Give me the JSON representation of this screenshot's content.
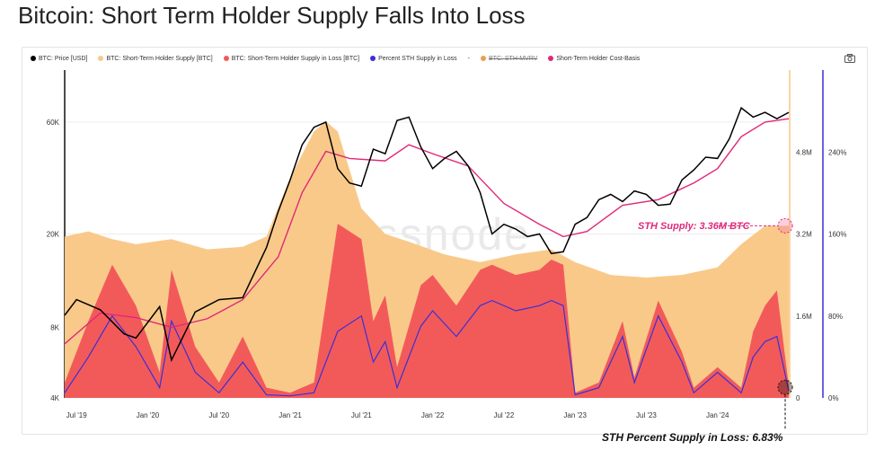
{
  "chart_data": {
    "type": "area",
    "title": "Bitcoin: Short Term Holder Supply Falls Into Loss",
    "watermark": "glassnode",
    "x_tick_labels": [
      "Jul '19",
      "Jan '20",
      "Jul '20",
      "Jan '21",
      "Jul '21",
      "Jan '22",
      "Jul '22",
      "Jan '23",
      "Jul '23",
      "Jan '24"
    ],
    "x_range": [
      "2019-06",
      "2024-07"
    ],
    "y_left": {
      "scale": "log",
      "range": [
        4000,
        100000
      ],
      "tick_labels": [
        "4K",
        "8K",
        "20K",
        "60K"
      ]
    },
    "y_right_supply": {
      "range": [
        0,
        6400000
      ],
      "tick_labels": [
        "0",
        "1.6M",
        "3.2M",
        "4.8M"
      ]
    },
    "y_right_percent": {
      "range": [
        0,
        320
      ],
      "tick_labels": [
        "0%",
        "80%",
        "160%",
        "240%"
      ]
    },
    "legend": {
      "placement": "top-left",
      "entries": [
        {
          "label": "BTC: Price [USD]",
          "color": "#000000"
        },
        {
          "label": "BTC: Short-Term Holder Supply [BTC]",
          "color": "#f9c98a"
        },
        {
          "label": "BTC: Short-Term Holder Supply in Loss [BTC]",
          "color": "#f25a5a"
        },
        {
          "label": "Percent STH Supply in Loss",
          "color": "#3b2fd6"
        },
        {
          "label": "-",
          "color": ""
        },
        {
          "label": "BTC: STH-MVRV",
          "color": "#e8a050",
          "struck": true
        },
        {
          "label": "Short-Term Holder Cost-Basis",
          "color": "#e0287a"
        }
      ]
    },
    "series": [
      {
        "name": "BTC: Price [USD]",
        "color": "#000000",
        "axis": "left",
        "points": [
          [
            "2019-06",
            9000
          ],
          [
            "2019-07",
            10500
          ],
          [
            "2019-09",
            9500
          ],
          [
            "2019-11",
            7500
          ],
          [
            "2019-12",
            7200
          ],
          [
            "2020-02",
            9800
          ],
          [
            "2020-03",
            5800
          ],
          [
            "2020-05",
            9300
          ],
          [
            "2020-07",
            10500
          ],
          [
            "2020-09",
            10700
          ],
          [
            "2020-11",
            17500
          ],
          [
            "2020-12",
            25000
          ],
          [
            "2021-01",
            34000
          ],
          [
            "2021-02",
            48000
          ],
          [
            "2021-03",
            57000
          ],
          [
            "2021-04",
            60000
          ],
          [
            "2021-05",
            38000
          ],
          [
            "2021-06",
            33000
          ],
          [
            "2021-07",
            32000
          ],
          [
            "2021-08",
            46000
          ],
          [
            "2021-09",
            44000
          ],
          [
            "2021-10",
            61000
          ],
          [
            "2021-11",
            63000
          ],
          [
            "2021-12",
            47000
          ],
          [
            "2022-01",
            38000
          ],
          [
            "2022-02",
            42000
          ],
          [
            "2022-03",
            45000
          ],
          [
            "2022-04",
            39000
          ],
          [
            "2022-05",
            30000
          ],
          [
            "2022-06",
            20000
          ],
          [
            "2022-07",
            22000
          ],
          [
            "2022-08",
            21000
          ],
          [
            "2022-09",
            19500
          ],
          [
            "2022-10",
            20000
          ],
          [
            "2022-11",
            16500
          ],
          [
            "2022-12",
            16800
          ],
          [
            "2023-01",
            22000
          ],
          [
            "2023-02",
            23500
          ],
          [
            "2023-03",
            28000
          ],
          [
            "2023-04",
            29500
          ],
          [
            "2023-05",
            27500
          ],
          [
            "2023-06",
            30500
          ],
          [
            "2023-07",
            29500
          ],
          [
            "2023-08",
            26500
          ],
          [
            "2023-09",
            26800
          ],
          [
            "2023-10",
            34000
          ],
          [
            "2023-11",
            37500
          ],
          [
            "2023-12",
            42500
          ],
          [
            "2024-01",
            42000
          ],
          [
            "2024-02",
            51000
          ],
          [
            "2024-03",
            69000
          ],
          [
            "2024-04",
            63000
          ],
          [
            "2024-05",
            66000
          ],
          [
            "2024-06",
            62000
          ],
          [
            "2024-07",
            66000
          ]
        ]
      },
      {
        "name": "BTC: Short-Term Holder Supply [BTC]",
        "color": "#f9c98a",
        "axis": "right_supply",
        "points": [
          [
            "2019-06",
            3150000
          ],
          [
            "2019-08",
            3250000
          ],
          [
            "2019-10",
            3100000
          ],
          [
            "2019-12",
            3000000
          ],
          [
            "2020-03",
            3100000
          ],
          [
            "2020-06",
            2900000
          ],
          [
            "2020-09",
            2950000
          ],
          [
            "2020-11",
            3150000
          ],
          [
            "2021-01",
            4300000
          ],
          [
            "2021-03",
            5200000
          ],
          [
            "2021-04",
            5400000
          ],
          [
            "2021-05",
            5200000
          ],
          [
            "2021-07",
            3700000
          ],
          [
            "2021-09",
            3200000
          ],
          [
            "2021-11",
            3050000
          ],
          [
            "2022-02",
            2800000
          ],
          [
            "2022-05",
            2650000
          ],
          [
            "2022-08",
            2800000
          ],
          [
            "2022-11",
            2900000
          ],
          [
            "2023-01",
            2650000
          ],
          [
            "2023-04",
            2400000
          ],
          [
            "2023-07",
            2350000
          ],
          [
            "2023-10",
            2400000
          ],
          [
            "2024-01",
            2550000
          ],
          [
            "2024-03",
            3000000
          ],
          [
            "2024-05",
            3360000
          ],
          [
            "2024-07",
            3360000
          ]
        ]
      },
      {
        "name": "BTC: Short-Term Holder Supply in Loss [BTC]",
        "color": "#f25a5a",
        "axis": "right_supply",
        "points": [
          [
            "2019-06",
            300000
          ],
          [
            "2019-08",
            1500000
          ],
          [
            "2019-10",
            2600000
          ],
          [
            "2019-12",
            1800000
          ],
          [
            "2020-02",
            500000
          ],
          [
            "2020-03",
            2500000
          ],
          [
            "2020-05",
            1000000
          ],
          [
            "2020-07",
            300000
          ],
          [
            "2020-09",
            1200000
          ],
          [
            "2020-11",
            200000
          ],
          [
            "2021-01",
            100000
          ],
          [
            "2021-03",
            300000
          ],
          [
            "2021-05",
            3400000
          ],
          [
            "2021-07",
            3100000
          ],
          [
            "2021-08",
            1500000
          ],
          [
            "2021-09",
            2000000
          ],
          [
            "2021-10",
            600000
          ],
          [
            "2021-12",
            2200000
          ],
          [
            "2022-01",
            2400000
          ],
          [
            "2022-03",
            1800000
          ],
          [
            "2022-05",
            2500000
          ],
          [
            "2022-06",
            2600000
          ],
          [
            "2022-08",
            2400000
          ],
          [
            "2022-10",
            2500000
          ],
          [
            "2022-11",
            2700000
          ],
          [
            "2022-12",
            2600000
          ],
          [
            "2023-01",
            100000
          ],
          [
            "2023-03",
            300000
          ],
          [
            "2023-05",
            1500000
          ],
          [
            "2023-06",
            400000
          ],
          [
            "2023-08",
            1900000
          ],
          [
            "2023-10",
            900000
          ],
          [
            "2023-11",
            200000
          ],
          [
            "2024-01",
            600000
          ],
          [
            "2024-03",
            200000
          ],
          [
            "2024-04",
            1300000
          ],
          [
            "2024-05",
            1800000
          ],
          [
            "2024-06",
            2100000
          ],
          [
            "2024-07",
            230000
          ]
        ]
      },
      {
        "name": "Percent STH Supply in Loss",
        "color": "#3b2fd6",
        "axis": "right_percent",
        "points": [
          [
            "2019-06",
            5
          ],
          [
            "2019-08",
            40
          ],
          [
            "2019-10",
            80
          ],
          [
            "2019-12",
            50
          ],
          [
            "2020-02",
            10
          ],
          [
            "2020-03",
            75
          ],
          [
            "2020-05",
            25
          ],
          [
            "2020-07",
            5
          ],
          [
            "2020-09",
            35
          ],
          [
            "2020-11",
            3
          ],
          [
            "2021-01",
            2
          ],
          [
            "2021-03",
            5
          ],
          [
            "2021-05",
            65
          ],
          [
            "2021-07",
            80
          ],
          [
            "2021-08",
            35
          ],
          [
            "2021-09",
            55
          ],
          [
            "2021-10",
            10
          ],
          [
            "2021-12",
            70
          ],
          [
            "2022-01",
            85
          ],
          [
            "2022-03",
            60
          ],
          [
            "2022-05",
            90
          ],
          [
            "2022-06",
            95
          ],
          [
            "2022-08",
            85
          ],
          [
            "2022-10",
            90
          ],
          [
            "2022-11",
            95
          ],
          [
            "2022-12",
            90
          ],
          [
            "2023-01",
            3
          ],
          [
            "2023-03",
            10
          ],
          [
            "2023-05",
            60
          ],
          [
            "2023-06",
            15
          ],
          [
            "2023-08",
            80
          ],
          [
            "2023-10",
            35
          ],
          [
            "2023-11",
            5
          ],
          [
            "2024-01",
            25
          ],
          [
            "2024-03",
            5
          ],
          [
            "2024-04",
            40
          ],
          [
            "2024-05",
            55
          ],
          [
            "2024-06",
            60
          ],
          [
            "2024-07",
            6.83
          ]
        ]
      },
      {
        "name": "Short-Term Holder Cost-Basis",
        "color": "#e0287a",
        "axis": "left",
        "points": [
          [
            "2019-06",
            6800
          ],
          [
            "2019-09",
            9200
          ],
          [
            "2019-12",
            8800
          ],
          [
            "2020-03",
            8000
          ],
          [
            "2020-06",
            8700
          ],
          [
            "2020-09",
            10500
          ],
          [
            "2020-12",
            16000
          ],
          [
            "2021-02",
            30000
          ],
          [
            "2021-04",
            45000
          ],
          [
            "2021-06",
            42000
          ],
          [
            "2021-09",
            41000
          ],
          [
            "2021-11",
            48000
          ],
          [
            "2022-01",
            44000
          ],
          [
            "2022-04",
            39000
          ],
          [
            "2022-07",
            27000
          ],
          [
            "2022-10",
            22000
          ],
          [
            "2022-12",
            19500
          ],
          [
            "2023-02",
            20500
          ],
          [
            "2023-05",
            26500
          ],
          [
            "2023-08",
            28000
          ],
          [
            "2023-11",
            33000
          ],
          [
            "2024-01",
            38000
          ],
          [
            "2024-03",
            52000
          ],
          [
            "2024-05",
            60000
          ],
          [
            "2024-07",
            62000
          ]
        ]
      }
    ],
    "annotations": [
      {
        "text": "STH Supply: 3.36M BTC",
        "color": "#e0287a"
      },
      {
        "text": "STH Percent Supply in Loss: 6.83%",
        "color": "#111111"
      }
    ]
  }
}
